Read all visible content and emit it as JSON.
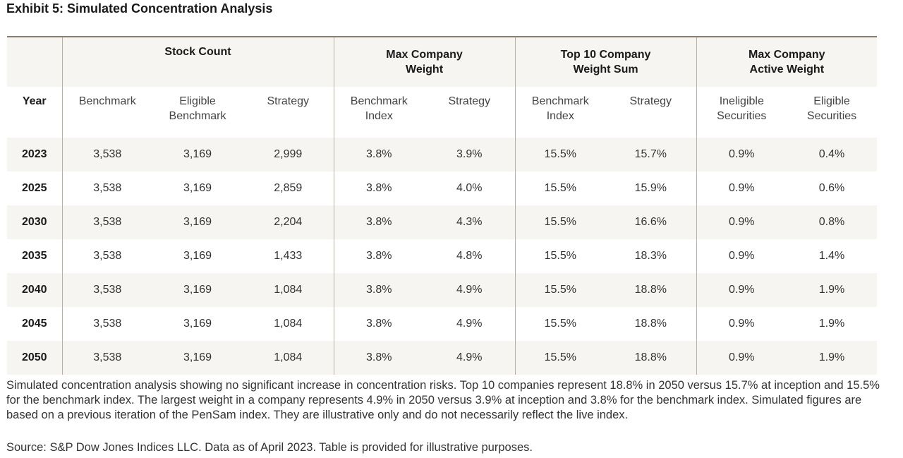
{
  "title": "Exhibit 5: Simulated Concentration Analysis",
  "groups": {
    "stock_count": "Stock Count",
    "max_company_weight": [
      "Max Company",
      "Weight"
    ],
    "top10_weight_sum": [
      "Top 10 Company",
      "Weight Sum"
    ],
    "max_active_weight": [
      "Max Company",
      "Active Weight"
    ]
  },
  "columns": {
    "year": "Year",
    "benchmark": "Benchmark",
    "eligible_benchmark": [
      "Eligible",
      "Benchmark"
    ],
    "strategy": "Strategy",
    "mcw_benchmark_index": [
      "Benchmark",
      "Index"
    ],
    "mcw_strategy": "Strategy",
    "t10_benchmark_index": [
      "Benchmark",
      "Index"
    ],
    "t10_strategy": "Strategy",
    "ineligible_securities": [
      "Ineligible",
      "Securities"
    ],
    "eligible_securities": [
      "Eligible",
      "Securities"
    ]
  },
  "rows": [
    [
      "2023",
      "3,538",
      "3,169",
      "2,999",
      "3.8%",
      "3.9%",
      "15.5%",
      "15.7%",
      "0.9%",
      "0.4%"
    ],
    [
      "2025",
      "3,538",
      "3,169",
      "2,859",
      "3.8%",
      "4.0%",
      "15.5%",
      "15.9%",
      "0.9%",
      "0.6%"
    ],
    [
      "2030",
      "3,538",
      "3,169",
      "2,204",
      "3.8%",
      "4.3%",
      "15.5%",
      "16.6%",
      "0.9%",
      "0.8%"
    ],
    [
      "2035",
      "3,538",
      "3,169",
      "1,433",
      "3.8%",
      "4.8%",
      "15.5%",
      "18.3%",
      "0.9%",
      "1.4%"
    ],
    [
      "2040",
      "3,538",
      "3,169",
      "1,084",
      "3.8%",
      "4.9%",
      "15.5%",
      "18.8%",
      "0.9%",
      "1.9%"
    ],
    [
      "2045",
      "3,538",
      "3,169",
      "1,084",
      "3.8%",
      "4.9%",
      "15.5%",
      "18.8%",
      "0.9%",
      "1.9%"
    ],
    [
      "2050",
      "3,538",
      "3,169",
      "1,084",
      "3.8%",
      "4.9%",
      "15.5%",
      "18.8%",
      "0.9%",
      "1.9%"
    ]
  ],
  "caption": "Simulated concentration analysis showing no significant increase in concentration risks. Top 10 companies represent 18.8% in 2050 versus 15.7% at inception and 15.5% for the benchmark index. The largest weight in a company represents 4.9% in 2050 versus 3.9% at inception and 3.8% for the benchmark index. Simulated figures are based on a previous iteration of the PenSam index. They are illustrative only and do not necessarily reflect the live index.",
  "source": "Source: S&P Dow Jones Indices LLC. Data as of April 2023. Table is provided for illustrative purposes.",
  "colors": {
    "header_band": "#f7f5f1",
    "top_rule": "#8a7c6c",
    "divider": "#b8afa5"
  }
}
